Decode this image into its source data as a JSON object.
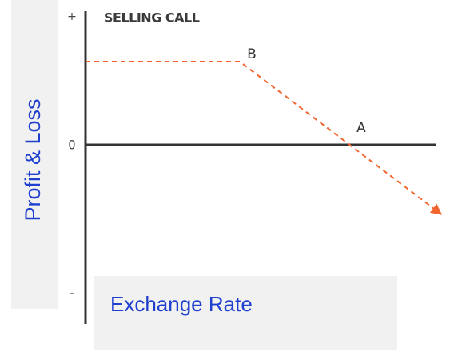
{
  "diagram": {
    "title": "SELLING CALL",
    "y_axis_label": "Profit & Loss",
    "x_axis_label": "Exchange Rate",
    "y_markers": {
      "plus": "+",
      "zero": "0",
      "minus": "-"
    },
    "points": {
      "b": "B",
      "a": "A"
    }
  }
}
